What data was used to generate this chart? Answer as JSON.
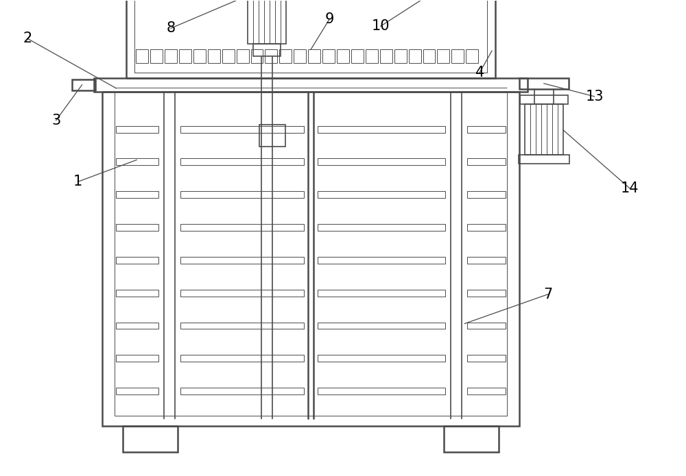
{
  "bg_color": "#ffffff",
  "line_color": "#4a4a4a",
  "lw_thick": 1.8,
  "lw_med": 1.2,
  "lw_thin": 0.7,
  "figure_size": [
    10.0,
    6.95
  ],
  "dpi": 100
}
